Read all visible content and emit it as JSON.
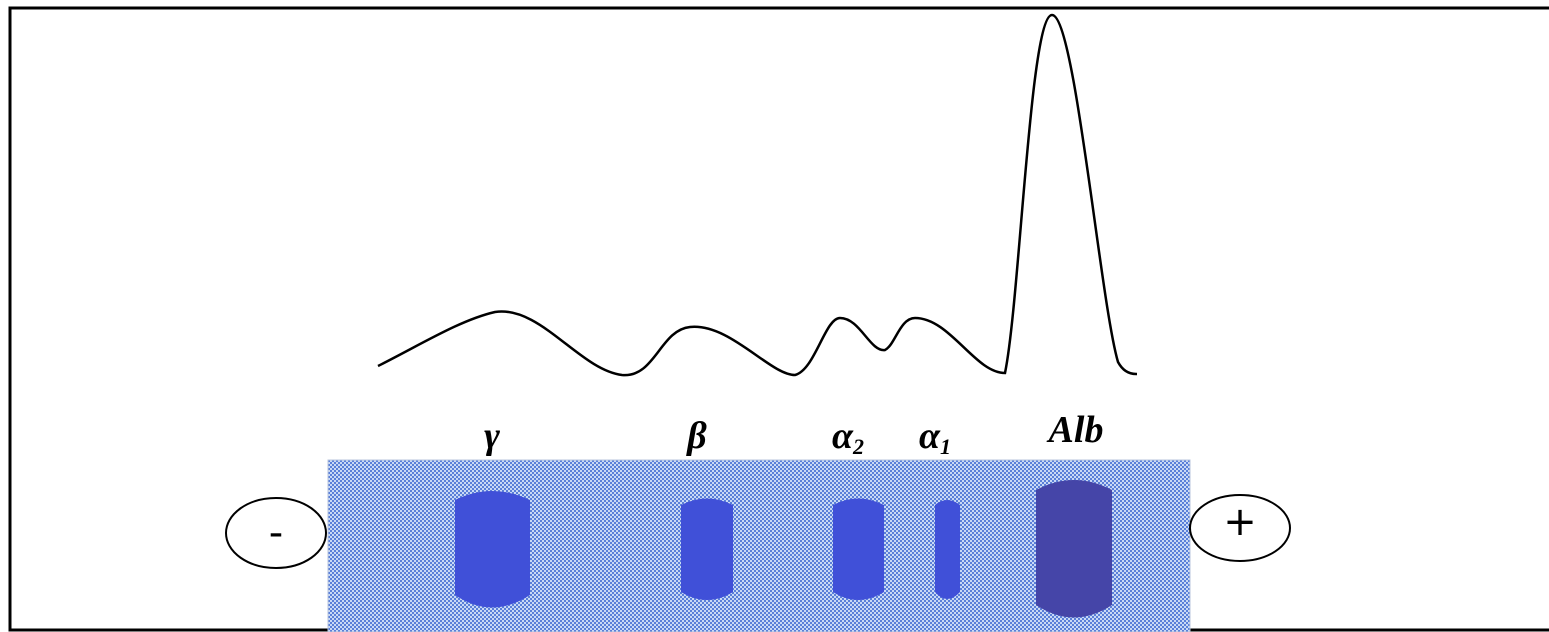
{
  "bands": [
    {
      "label": "γ"
    },
    {
      "label": "β"
    },
    {
      "label": "α",
      "subscript": "2"
    },
    {
      "label": "α",
      "subscript": "1"
    },
    {
      "label": "Alb"
    }
  ],
  "electrodes": {
    "cathode": "-",
    "anode": "+"
  }
}
